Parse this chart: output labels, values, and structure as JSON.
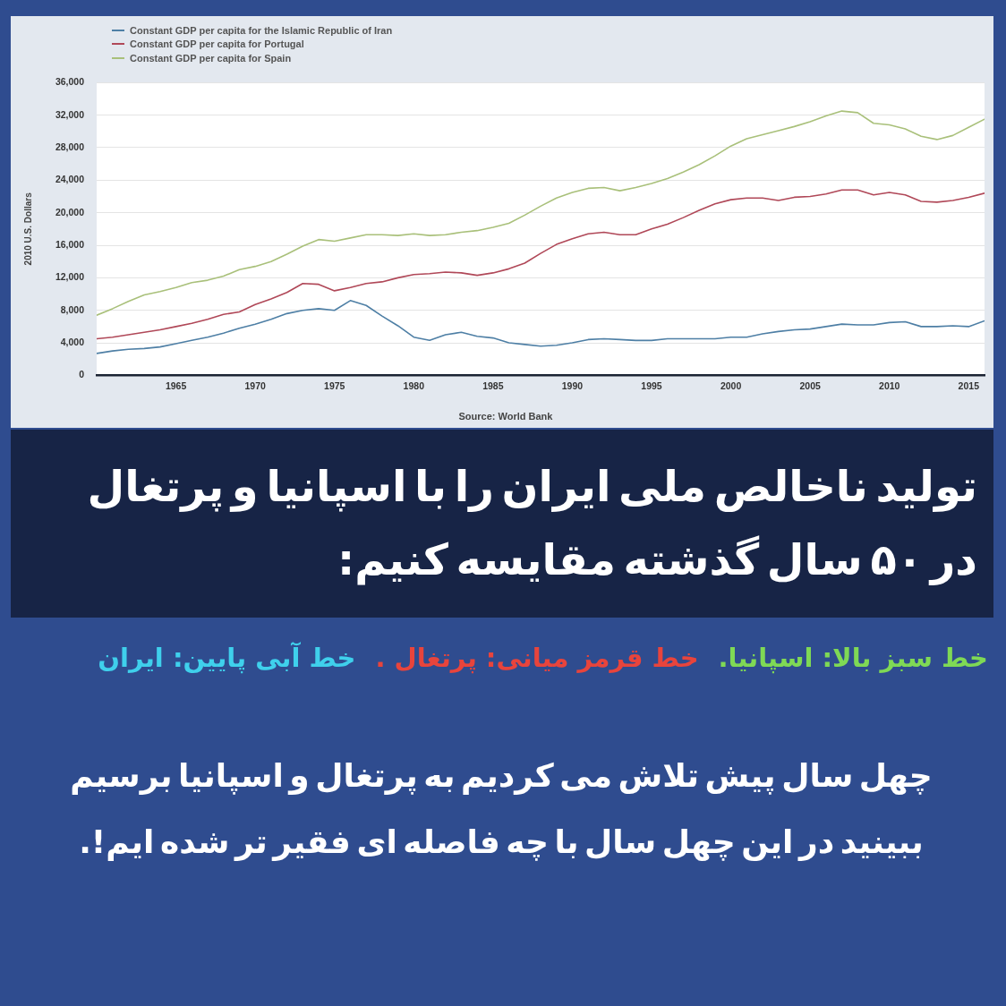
{
  "chart_data": {
    "type": "line",
    "title": "تولید ناخالص ملی ایران را با اسپانیا و پرتغال در ۵۰ سال گذشته مقایسه کنیم:",
    "ylabel": "2010 U.S. Dollars",
    "annotations": [
      "خط سبز بالا: اسپانیا.",
      "خط قرمز میانی: پرتغال .",
      "خط آبی پایین: ایران",
      "چهل سال پیش تلاش می کردیم به پرتغال و اسپانیا برسیم ببینید در این چهل سال با چه فاصله ای فقیر تر شده ایم!.",
      "Source: World Bank"
    ],
    "x": [
      1960,
      1961,
      1962,
      1963,
      1964,
      1965,
      1966,
      1967,
      1968,
      1969,
      1970,
      1971,
      1972,
      1973,
      1974,
      1975,
      1976,
      1977,
      1978,
      1979,
      1980,
      1981,
      1982,
      1983,
      1984,
      1985,
      1986,
      1987,
      1988,
      1989,
      1990,
      1991,
      1992,
      1993,
      1994,
      1995,
      1996,
      1997,
      1998,
      1999,
      2000,
      2001,
      2002,
      2003,
      2004,
      2005,
      2006,
      2007,
      2008,
      2009,
      2010,
      2011,
      2012,
      2013,
      2014,
      2015,
      2016
    ],
    "series": [
      {
        "name": "Constant GDP per capita for the Islamic Republic of Iran",
        "color": "#4e7fa5",
        "values": [
          2700,
          3000,
          3200,
          3300,
          3500,
          3900,
          4300,
          4700,
          5200,
          5800,
          6300,
          6900,
          7600,
          8000,
          8200,
          8000,
          9200,
          8600,
          7300,
          6100,
          4700,
          4300,
          5000,
          5300,
          4800,
          4600,
          4000,
          3800,
          3600,
          3700,
          4000,
          4400,
          4500,
          4400,
          4300,
          4300,
          4500,
          4500,
          4500,
          4500,
          4700,
          4700,
          5100,
          5400,
          5600,
          5700,
          6000,
          6300,
          6200,
          6200,
          6500,
          6600,
          6000,
          6000,
          6100,
          6000,
          6700
        ]
      },
      {
        "name": "Constant GDP per capita for Portugal",
        "color": "#b04858",
        "values": [
          4500,
          4700,
          5000,
          5300,
          5600,
          6000,
          6400,
          6900,
          7500,
          7800,
          8700,
          9400,
          10200,
          11300,
          11200,
          10400,
          10800,
          11300,
          11500,
          12000,
          12400,
          12500,
          12700,
          12600,
          12300,
          12600,
          13100,
          13800,
          15000,
          16100,
          16800,
          17400,
          17600,
          17300,
          17300,
          18000,
          18600,
          19400,
          20300,
          21100,
          21600,
          21800,
          21800,
          21500,
          21900,
          22000,
          22300,
          22800,
          22800,
          22200,
          22500,
          22200,
          21400,
          21300,
          21500,
          21900,
          22400
        ]
      },
      {
        "name": "Constant GDP per capita for Spain",
        "color": "#a9c07a",
        "values": [
          7400,
          8200,
          9100,
          9900,
          10300,
          10800,
          11400,
          11700,
          12200,
          13000,
          13400,
          14000,
          14900,
          15900,
          16700,
          16500,
          16900,
          17300,
          17300,
          17200,
          17400,
          17200,
          17300,
          17600,
          17800,
          18200,
          18700,
          19700,
          20800,
          21800,
          22500,
          23000,
          23100,
          22700,
          23100,
          23600,
          24200,
          25000,
          25900,
          27000,
          28200,
          29100,
          29600,
          30100,
          30600,
          31200,
          31900,
          32500,
          32300,
          31000,
          30800,
          30300,
          29400,
          29000,
          29500,
          30500,
          31500
        ]
      }
    ],
    "xlim": [
      1960,
      2016
    ],
    "xticks": [
      1965,
      1970,
      1975,
      1980,
      1985,
      1990,
      1995,
      2000,
      2005,
      2010,
      2015
    ],
    "ylim": [
      0,
      36000
    ],
    "yticks": [
      0,
      {
        "value": 4000,
        "label": "4,000"
      },
      {
        "value": 8000,
        "label": "8,000"
      },
      {
        "value": 12000,
        "label": "12,000"
      },
      {
        "value": 16000,
        "label": "16,000"
      },
      {
        "value": 20000,
        "label": "20,000"
      },
      {
        "value": 24000,
        "label": "24,000"
      },
      {
        "value": 28000,
        "label": "28,000"
      },
      {
        "value": 32000,
        "label": "32,000"
      },
      {
        "value": 36000,
        "label": "36,000"
      }
    ],
    "grid": "y",
    "legend": "top left",
    "marker": "none",
    "line_style": "solid"
  }
}
